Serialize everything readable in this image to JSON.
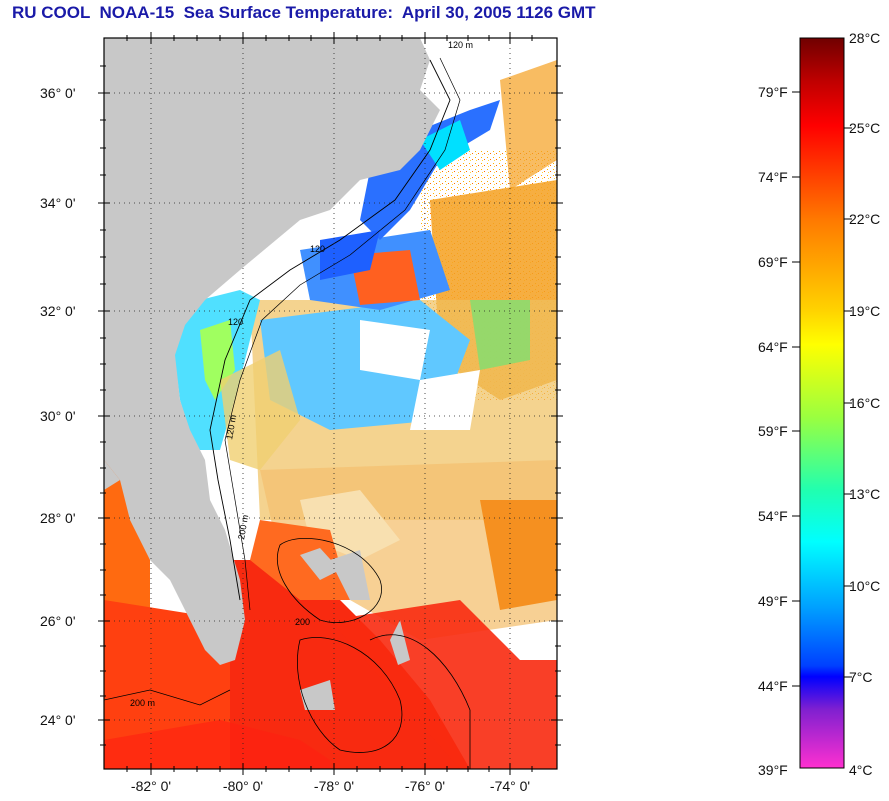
{
  "title": "RU COOL  NOAA-15  Sea Surface Temperature:  April 30, 2005 1126 GMT",
  "map": {
    "lat_labels": [
      "36° 0'",
      "34° 0'",
      "32° 0'",
      "30° 0'",
      "28° 0'",
      "26° 0'",
      "24° 0'"
    ],
    "lon_labels": [
      "-82° 0'",
      "-80° 0'",
      "-78° 0'",
      "-76° 0'",
      "-74° 0'"
    ],
    "contour_labels": [
      "120 m",
      "120",
      "120",
      "120 m",
      "200 m",
      "200",
      "200 m"
    ],
    "colors": {
      "land": "#c8c8c8",
      "cloud": "#ffffff",
      "frame": "#000000"
    }
  },
  "colorbar": {
    "fahrenheit_labels": [
      "79°F",
      "74°F",
      "69°F",
      "64°F",
      "59°F",
      "54°F",
      "49°F",
      "44°F",
      "39°F"
    ],
    "celsius_labels": [
      "28°C",
      "25°C",
      "22°C",
      "19°C",
      "16°C",
      "13°C",
      "10°C",
      "7°C",
      "4°C"
    ],
    "range_c": [
      4,
      28
    ],
    "colors_top_to_bottom": [
      "#7a0000",
      "#ff0000",
      "#ff7a00",
      "#ffff00",
      "#7dff4a",
      "#00ffff",
      "#0080ff",
      "#0000ff",
      "#9000c0",
      "#ff20c0"
    ]
  }
}
